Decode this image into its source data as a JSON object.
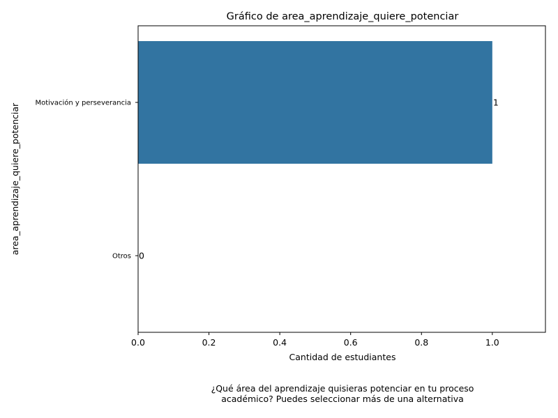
{
  "chart_data": {
    "type": "bar",
    "orientation": "horizontal",
    "title": "Gráfico de area_aprendizaje_quiere_potenciar",
    "xlabel": "Cantidad de estudiantes",
    "ylabel": "area_aprendizaje_quiere_potenciar",
    "categories": [
      "Motivación y perseverancia",
      "Otros"
    ],
    "values": [
      1,
      0
    ],
    "value_labels": [
      "1",
      "0"
    ],
    "xlim": [
      0,
      1.15
    ],
    "xticks": [
      0.0,
      0.2,
      0.4,
      0.6,
      0.8,
      1.0
    ],
    "xtick_labels": [
      "0.0",
      "0.2",
      "0.4",
      "0.6",
      "0.8",
      "1.0"
    ],
    "bar_color": "#3274a1",
    "grid": false,
    "caption_lines": [
      "¿Qué área del aprendizaje quisieras potenciar en tu proceso",
      "académico? Puedes seleccionar más de una alternativa"
    ]
  }
}
